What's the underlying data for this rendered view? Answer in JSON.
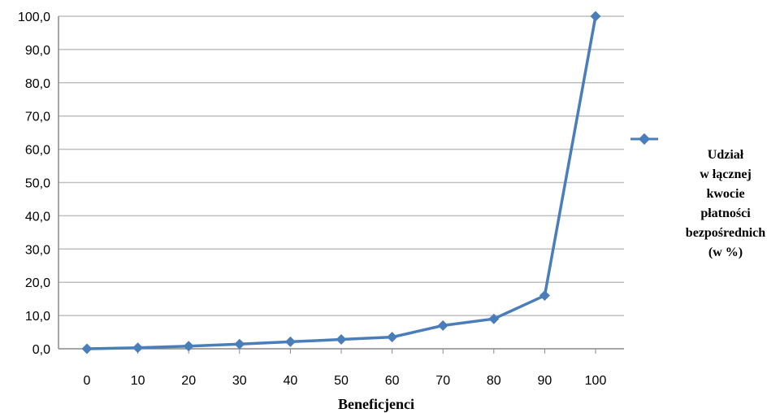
{
  "chart_data": {
    "type": "line",
    "x": [
      0,
      10,
      20,
      30,
      40,
      50,
      60,
      70,
      80,
      90,
      100
    ],
    "series": [
      {
        "name": "Udział w łącznej kwocie płatności bezpośrednich (w %)",
        "values": [
          0.0,
          0.3,
          0.8,
          1.4,
          2.1,
          2.8,
          3.5,
          7.0,
          9.0,
          16.0,
          100.0
        ]
      }
    ],
    "xticks": [
      "0",
      "10",
      "20",
      "30",
      "40",
      "50",
      "60",
      "70",
      "80",
      "90",
      "100"
    ],
    "yticks": [
      "0,0",
      "10,0",
      "20,0",
      "30,0",
      "40,0",
      "50,0",
      "60,0",
      "70,0",
      "80,0",
      "90,0",
      "100,0"
    ],
    "xlabel": "Beneficjenci",
    "ylabel": "",
    "ylim": [
      0,
      100
    ],
    "grid": "horizontal",
    "legend": {
      "position": "right",
      "lines": [
        "Udział",
        "w łącznej",
        "kwocie",
        "płatności",
        "bezpośrednich",
        "(w %)"
      ]
    },
    "colors": {
      "series": "#4A7EBB",
      "grid": "#BFBFBF",
      "axis": "#888888"
    }
  }
}
